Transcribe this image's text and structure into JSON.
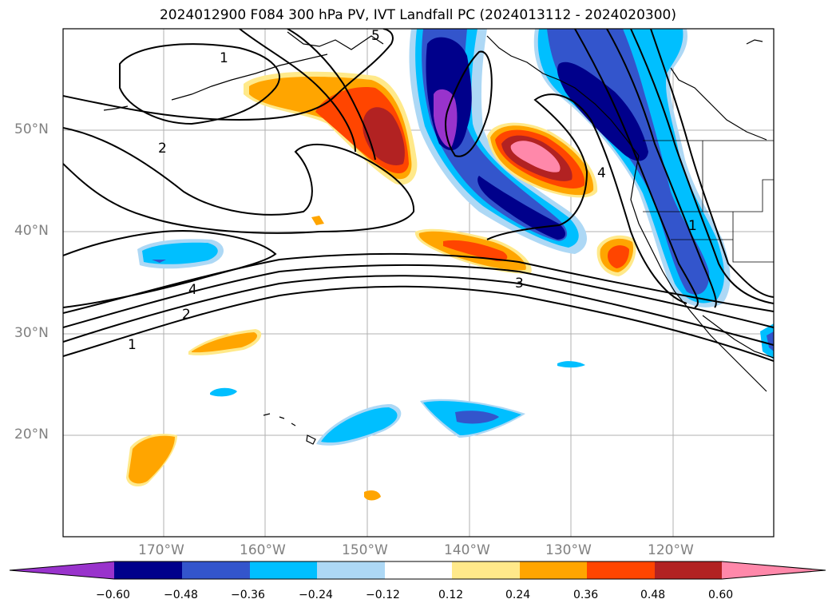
{
  "title": "2024012900 F084 300 hPa PV, IVT Landfall PC (2024013112 - 2024020300)",
  "lat_labels": [
    "50°N",
    "40°N",
    "30°N",
    "20°N"
  ],
  "lon_labels": [
    "170°W",
    "160°W",
    "150°W",
    "140°W",
    "130°W",
    "120°W"
  ],
  "contour_labels": [
    "1",
    "2",
    "4",
    "2",
    "1",
    "3",
    "4",
    "5",
    "1"
  ],
  "colorbar": {
    "ticks": [
      "−0.60",
      "−0.48",
      "−0.36",
      "−0.24",
      "−0.12",
      "0.12",
      "0.24",
      "0.36",
      "0.48",
      "0.60"
    ],
    "colors": [
      "#9933cc",
      "#00008b",
      "#3355cc",
      "#00bfff",
      "#add8f5",
      "#ffffff",
      "#ffe98a",
      "#ffa500",
      "#ff4500",
      "#b22222",
      "#ff88aa"
    ]
  }
}
